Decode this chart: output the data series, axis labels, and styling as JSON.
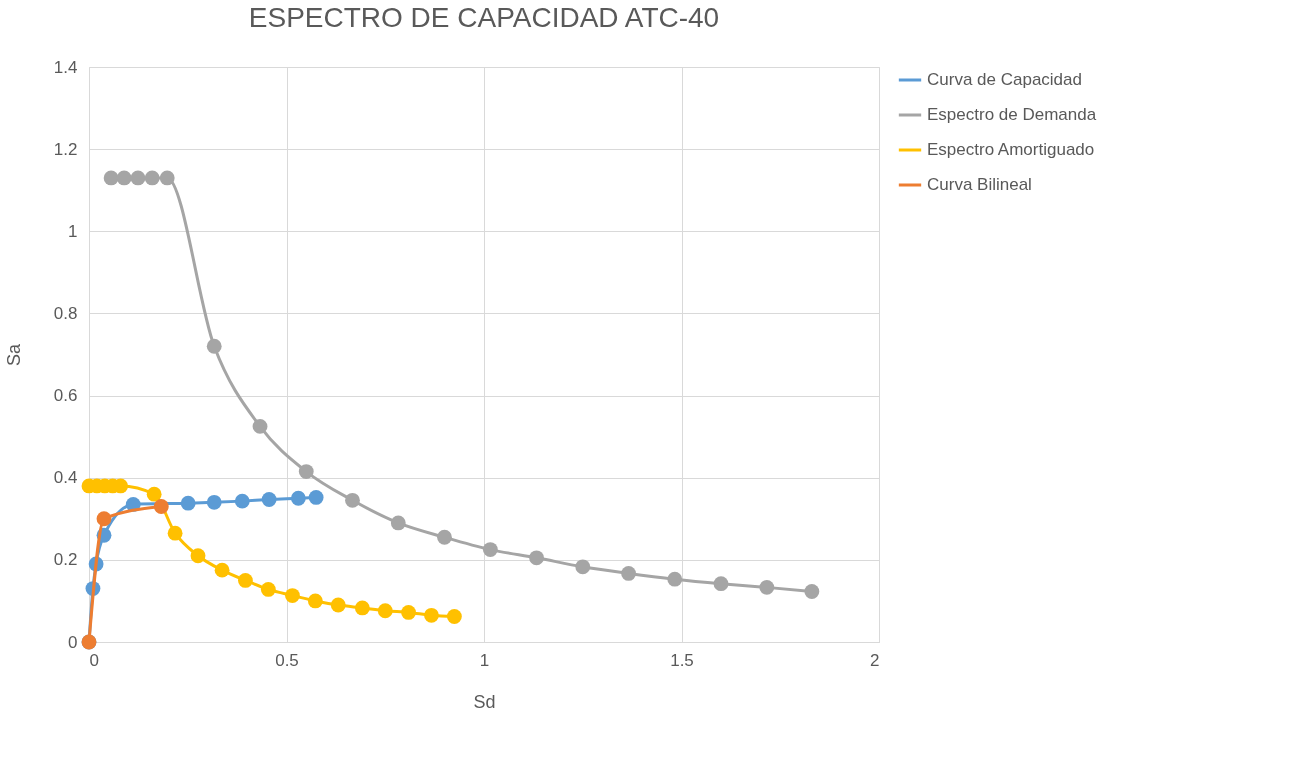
{
  "chart_data": {
    "type": "line",
    "title": "ESPECTRO DE CAPACIDAD  ATC-40",
    "xlabel": "Sd",
    "ylabel": "Sa",
    "xlim": [
      0,
      2
    ],
    "xticks": [
      0,
      0.5,
      1,
      1.5,
      2
    ],
    "ylim": [
      0,
      1.4
    ],
    "yticks": [
      0,
      0.2,
      0.4,
      0.6,
      0.8,
      1,
      1.2,
      1.4
    ],
    "grid": true,
    "legend": "right",
    "marker": "circle",
    "line_style": "solid",
    "series": [
      {
        "name": "Curva de Capacidad",
        "color": "#5b9bd5",
        "x": [
          0,
          0.01,
          0.018,
          0.038,
          0.112,
          0.251,
          0.317,
          0.388,
          0.456,
          0.53,
          0.575
        ],
        "values": [
          0,
          0.13,
          0.19,
          0.26,
          0.335,
          0.338,
          0.34,
          0.343,
          0.347,
          0.35,
          0.352
        ]
      },
      {
        "name": "Espectro de Demanda",
        "color": "#a5a5a5",
        "x": [
          0.056,
          0.089,
          0.124,
          0.16,
          0.198,
          0.317,
          0.433,
          0.55,
          0.667,
          0.783,
          0.9,
          1.016,
          1.133,
          1.25,
          1.366,
          1.483,
          1.6,
          1.716,
          1.83
        ],
        "values": [
          1.13,
          1.13,
          1.13,
          1.13,
          1.13,
          0.72,
          0.525,
          0.415,
          0.345,
          0.29,
          0.255,
          0.225,
          0.205,
          0.183,
          0.167,
          0.153,
          0.142,
          0.133,
          0.123
        ]
      },
      {
        "name": "Espectro Amortiguado",
        "color": "#ffc000",
        "x": [
          0,
          0.02,
          0.04,
          0.06,
          0.08,
          0.165,
          0.218,
          0.276,
          0.337,
          0.396,
          0.454,
          0.515,
          0.573,
          0.631,
          0.692,
          0.75,
          0.809,
          0.867,
          0.925
        ],
        "values": [
          0.38,
          0.38,
          0.38,
          0.38,
          0.38,
          0.36,
          0.265,
          0.21,
          0.175,
          0.15,
          0.128,
          0.113,
          0.1,
          0.09,
          0.083,
          0.076,
          0.072,
          0.065,
          0.062
        ]
      },
      {
        "name": "Curva Bilineal",
        "color": "#ed7d31",
        "x": [
          0,
          0.038,
          0.183
        ],
        "values": [
          0,
          0.3,
          0.33
        ]
      }
    ]
  }
}
